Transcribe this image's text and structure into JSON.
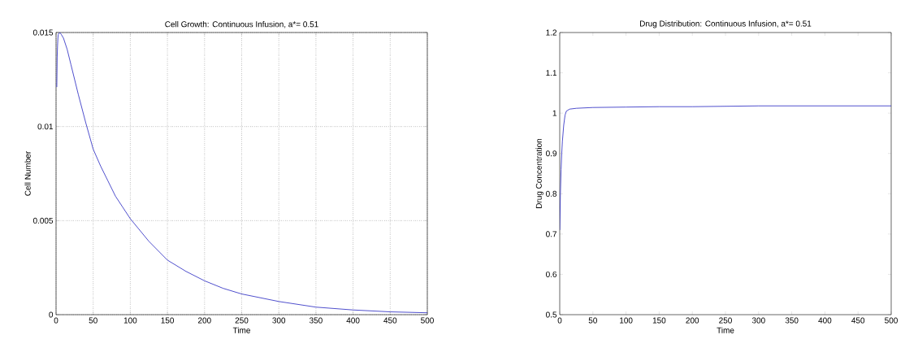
{
  "chart_data": [
    {
      "type": "line",
      "title": "Cell Growth: Continuous Infusion, a*= 0.51",
      "xlabel": "Time",
      "ylabel": "Cell Number",
      "color": "#2323c0",
      "grid": true,
      "x": [
        1,
        1.5,
        2,
        2.5,
        3,
        5,
        7,
        10,
        15,
        20,
        30,
        40,
        50,
        60,
        70,
        80,
        90,
        100,
        125,
        150,
        175,
        200,
        225,
        250,
        275,
        300,
        350,
        400,
        450,
        500
      ],
      "values": [
        0.0121,
        0.0137,
        0.0143,
        0.0147,
        0.0149,
        0.015,
        0.0149,
        0.0147,
        0.0141,
        0.0133,
        0.0117,
        0.0102,
        0.0088,
        0.0079,
        0.0071,
        0.0063,
        0.0057,
        0.0051,
        0.0039,
        0.0029,
        0.0023,
        0.0018,
        0.0014,
        0.0011,
        0.0009,
        0.0007,
        0.0004,
        0.00025,
        0.00015,
        0.0001
      ],
      "xlim": [
        0,
        500
      ],
      "ylim": [
        0,
        0.015
      ],
      "xticks": [
        0,
        50,
        100,
        150,
        200,
        250,
        300,
        350,
        400,
        450,
        500
      ],
      "yticks": [
        0,
        0.005,
        0.01,
        0.015
      ]
    },
    {
      "type": "line",
      "title": "Drug Distribution: Continuous Infusion, a*= 0.51",
      "xlabel": "Time",
      "ylabel": "Drug Concentration",
      "color": "#2323c0",
      "x": [
        0,
        1,
        2,
        3,
        4,
        6,
        8,
        10,
        15,
        25,
        50,
        100,
        150,
        200,
        250,
        300,
        350,
        400,
        450,
        500
      ],
      "values": [
        0.71,
        0.8,
        0.86,
        0.9,
        0.93,
        0.97,
        0.995,
        1.005,
        1.01,
        1.012,
        1.014,
        1.015,
        1.016,
        1.016,
        1.017,
        1.018,
        1.018,
        1.018,
        1.018,
        1.018
      ],
      "xlim": [
        0,
        500
      ],
      "ylim": [
        0.5,
        1.2
      ],
      "xticks": [
        0,
        50,
        100,
        150,
        200,
        250,
        300,
        350,
        400,
        450,
        500
      ],
      "yticks": [
        0.5,
        0.6,
        0.7,
        0.8,
        0.9,
        1,
        1.1,
        1.2
      ]
    }
  ]
}
